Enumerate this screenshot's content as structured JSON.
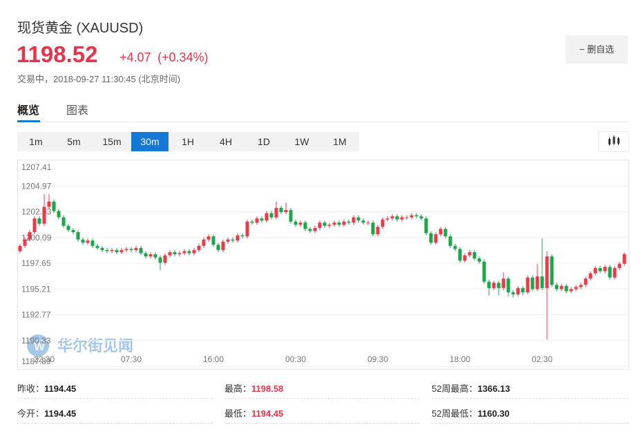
{
  "header": {
    "title": "现货黄金  (XAUUSD)",
    "price": "1198.52",
    "change": "+4.07",
    "change_pct": "(+0.34%)",
    "status": "交易中，2018-09-27 11:30:45 (北京时间)",
    "button": "删自选"
  },
  "tabs": {
    "items": [
      "概览",
      "图表"
    ],
    "active": 0
  },
  "intervals": {
    "items": [
      "1m",
      "5m",
      "15m",
      "30m",
      "1H",
      "4H",
      "1D",
      "1W",
      "1M"
    ],
    "active": 3
  },
  "watermark": "华尔街见闻",
  "stats": [
    [
      "昨收：",
      "1194.45"
    ],
    [
      "最高：",
      "1198.58"
    ],
    [
      "52周最高：",
      "1366.13"
    ],
    [
      "今开：",
      "1194.45"
    ],
    [
      "最低：",
      "1194.45"
    ],
    [
      "52周最低：",
      "1160.30"
    ]
  ],
  "chart_data": {
    "type": "candlestick",
    "up_color": "#eb3b4b",
    "down_color": "#1ba64a",
    "grid": true,
    "ylim": [
      1187.89,
      1207.41
    ],
    "yticks": [
      1207.41,
      1204.97,
      1202.53,
      1200.09,
      1197.65,
      1195.21,
      1192.77,
      1190.33,
      1187.89
    ],
    "categories": [
      null,
      null,
      null,
      null,
      null,
      "22:30",
      null,
      null,
      null,
      null,
      null,
      null,
      null,
      null,
      null,
      null,
      null,
      null,
      null,
      null,
      null,
      null,
      null,
      "07:30",
      null,
      null,
      null,
      null,
      null,
      null,
      null,
      null,
      null,
      null,
      null,
      null,
      null,
      null,
      null,
      null,
      "16:00",
      null,
      null,
      null,
      null,
      null,
      null,
      null,
      null,
      null,
      null,
      null,
      null,
      null,
      null,
      null,
      null,
      "00:30",
      null,
      null,
      null,
      null,
      null,
      null,
      null,
      null,
      null,
      null,
      null,
      null,
      null,
      null,
      null,
      null,
      "09:30",
      null,
      null,
      null,
      null,
      null,
      null,
      null,
      null,
      null,
      null,
      null,
      null,
      null,
      null,
      null,
      null,
      "18:00",
      null,
      null,
      null,
      null,
      null,
      null,
      null,
      null,
      null,
      null,
      null,
      null,
      null,
      null,
      null,
      null,
      "02:30",
      null,
      null,
      null,
      null,
      null,
      null,
      null,
      null,
      null,
      null,
      null,
      null,
      null,
      null,
      null,
      null,
      null
    ],
    "open": [
      1198.8,
      1199.3,
      1199.9,
      1200.6,
      1201.9,
      1201.4,
      1203.0,
      1203.5,
      1202.6,
      1202.0,
      1201.2,
      1200.8,
      1200.6,
      1199.9,
      1199.6,
      1199.8,
      1199.3,
      1199.1,
      1198.9,
      1198.8,
      1198.9,
      1198.7,
      1198.9,
      1199.0,
      1198.9,
      1199.1,
      1198.6,
      1198.3,
      1198.5,
      1198.2,
      1197.7,
      1198.4,
      1198.7,
      1198.5,
      1198.6,
      1198.8,
      1198.6,
      1198.9,
      1199.3,
      1199.9,
      1200.2,
      1199.4,
      1198.9,
      1199.7,
      1199.9,
      1199.8,
      1200.3,
      1200.2,
      1201.6,
      1201.5,
      1201.9,
      1201.7,
      1202.4,
      1202.0,
      1202.9,
      1202.5,
      1202.7,
      1201.6,
      1201.3,
      1201.5,
      1200.9,
      1200.7,
      1201.0,
      1201.5,
      1201.2,
      1201.3,
      1201.5,
      1201.3,
      1201.6,
      1201.5,
      1202.0,
      1201.7,
      1201.5,
      1201.5,
      1200.4,
      1201.1,
      1201.8,
      1201.9,
      1202.1,
      1201.8,
      1202.0,
      1202.0,
      1202.2,
      1202.1,
      1201.9,
      1200.5,
      1199.6,
      1200.4,
      1200.9,
      1200.2,
      1199.3,
      1199.0,
      1197.9,
      1198.4,
      1198.7,
      1198.1,
      1197.8,
      1195.9,
      1195.3,
      1195.8,
      1195.3,
      1196.2,
      1194.9,
      1194.7,
      1195.3,
      1194.9,
      1196.3,
      1195.2,
      1196.4,
      1195.3,
      1198.3,
      1195.6,
      1195.2,
      1195.5,
      1195.0,
      1195.2,
      1195.4,
      1195.6,
      1196.2,
      1196.7,
      1197.2,
      1196.9,
      1197.3,
      1196.3,
      1197.2,
      1197.6
    ],
    "high": [
      1199.5,
      1200.1,
      1200.8,
      1202.1,
      1202.1,
      1204.2,
      1204.2,
      1203.7,
      1202.8,
      1202.2,
      1201.4,
      1201.0,
      1200.8,
      1200.1,
      1200.0,
      1200.0,
      1199.5,
      1199.3,
      1199.1,
      1199.1,
      1199.1,
      1199.1,
      1199.2,
      1199.2,
      1199.3,
      1199.3,
      1198.8,
      1198.7,
      1198.7,
      1198.4,
      1198.6,
      1198.9,
      1198.9,
      1198.8,
      1199.0,
      1199.0,
      1199.1,
      1199.5,
      1200.1,
      1200.4,
      1200.4,
      1199.6,
      1199.9,
      1200.1,
      1200.1,
      1200.5,
      1200.5,
      1201.8,
      1201.8,
      1202.1,
      1202.1,
      1202.6,
      1202.6,
      1203.5,
      1203.1,
      1203.4,
      1202.9,
      1201.8,
      1201.7,
      1201.7,
      1201.1,
      1201.2,
      1201.7,
      1201.7,
      1201.5,
      1201.7,
      1201.7,
      1201.8,
      1201.8,
      1202.2,
      1202.2,
      1201.9,
      1201.7,
      1201.7,
      1201.3,
      1202.0,
      1202.1,
      1202.3,
      1202.3,
      1202.2,
      1202.2,
      1202.4,
      1202.4,
      1202.3,
      1202.1,
      1200.7,
      1200.6,
      1201.1,
      1201.1,
      1200.4,
      1199.5,
      1199.2,
      1198.6,
      1198.9,
      1198.9,
      1198.3,
      1198.0,
      1196.1,
      1196.0,
      1196.0,
      1196.8,
      1196.4,
      1195.1,
      1195.5,
      1195.5,
      1196.5,
      1196.5,
      1197.6,
      1200.0,
      1198.8,
      1198.5,
      1195.8,
      1195.7,
      1195.7,
      1195.4,
      1195.6,
      1195.8,
      1196.4,
      1196.9,
      1197.4,
      1197.4,
      1197.5,
      1197.5,
      1197.4,
      1197.8,
      1198.7
    ],
    "low": [
      1198.6,
      1199.1,
      1199.7,
      1200.4,
      1201.2,
      1201.2,
      1202.8,
      1202.4,
      1201.8,
      1201.0,
      1200.6,
      1200.4,
      1199.7,
      1199.4,
      1199.4,
      1199.1,
      1198.9,
      1198.7,
      1198.6,
      1198.6,
      1198.5,
      1198.5,
      1198.7,
      1198.7,
      1198.7,
      1198.4,
      1198.1,
      1198.1,
      1198.0,
      1197.0,
      1197.5,
      1198.2,
      1198.3,
      1198.3,
      1198.4,
      1198.4,
      1198.4,
      1198.7,
      1199.1,
      1199.7,
      1199.2,
      1198.7,
      1198.7,
      1199.5,
      1199.6,
      1199.6,
      1200.0,
      1200.0,
      1201.3,
      1201.3,
      1201.5,
      1201.5,
      1201.8,
      1201.8,
      1202.3,
      1202.3,
      1201.4,
      1201.1,
      1201.1,
      1200.7,
      1200.5,
      1200.5,
      1200.8,
      1201.0,
      1201.0,
      1201.1,
      1201.1,
      1201.1,
      1201.3,
      1201.3,
      1201.5,
      1201.3,
      1201.3,
      1200.2,
      1200.2,
      1200.9,
      1201.6,
      1201.7,
      1201.6,
      1201.6,
      1201.8,
      1201.8,
      1201.9,
      1201.7,
      1200.3,
      1199.4,
      1199.4,
      1200.2,
      1200.0,
      1199.1,
      1198.8,
      1197.7,
      1197.7,
      1198.2,
      1197.9,
      1197.6,
      1195.7,
      1194.6,
      1195.1,
      1194.6,
      1195.1,
      1194.5,
      1194.4,
      1194.5,
      1194.6,
      1194.7,
      1195.0,
      1195.0,
      1195.1,
      1190.4,
      1195.4,
      1195.0,
      1195.0,
      1194.8,
      1194.8,
      1195.0,
      1195.2,
      1195.4,
      1196.0,
      1196.5,
      1196.7,
      1196.7,
      1196.1,
      1196.1,
      1197.0,
      1197.4
    ],
    "close": [
      1199.3,
      1199.9,
      1200.6,
      1201.9,
      1201.4,
      1203.0,
      1203.5,
      1202.6,
      1202.0,
      1201.2,
      1200.8,
      1200.6,
      1199.9,
      1199.6,
      1199.8,
      1199.3,
      1199.1,
      1198.9,
      1198.8,
      1198.9,
      1198.7,
      1198.9,
      1199.0,
      1198.9,
      1199.1,
      1198.6,
      1198.3,
      1198.5,
      1198.2,
      1197.7,
      1198.4,
      1198.7,
      1198.5,
      1198.6,
      1198.8,
      1198.6,
      1198.9,
      1199.3,
      1199.9,
      1200.2,
      1199.4,
      1198.9,
      1199.7,
      1199.9,
      1199.8,
      1200.3,
      1200.2,
      1201.6,
      1201.5,
      1201.9,
      1201.7,
      1202.4,
      1202.0,
      1202.9,
      1202.5,
      1202.7,
      1201.6,
      1201.3,
      1201.5,
      1200.9,
      1200.7,
      1201.0,
      1201.5,
      1201.2,
      1201.3,
      1201.5,
      1201.3,
      1201.6,
      1201.5,
      1202.0,
      1201.7,
      1201.5,
      1201.5,
      1200.4,
      1201.1,
      1201.8,
      1201.9,
      1202.1,
      1201.8,
      1202.0,
      1202.0,
      1202.2,
      1202.1,
      1201.9,
      1200.5,
      1199.6,
      1200.4,
      1200.9,
      1200.2,
      1199.3,
      1199.0,
      1197.9,
      1198.4,
      1198.7,
      1198.1,
      1197.8,
      1195.9,
      1195.3,
      1195.8,
      1195.3,
      1196.2,
      1194.9,
      1194.7,
      1195.3,
      1194.9,
      1196.3,
      1195.2,
      1196.4,
      1195.3,
      1198.3,
      1195.6,
      1195.2,
      1195.5,
      1195.0,
      1195.2,
      1195.4,
      1195.6,
      1196.2,
      1196.7,
      1197.2,
      1196.9,
      1197.3,
      1196.3,
      1197.2,
      1197.6,
      1198.52
    ]
  }
}
